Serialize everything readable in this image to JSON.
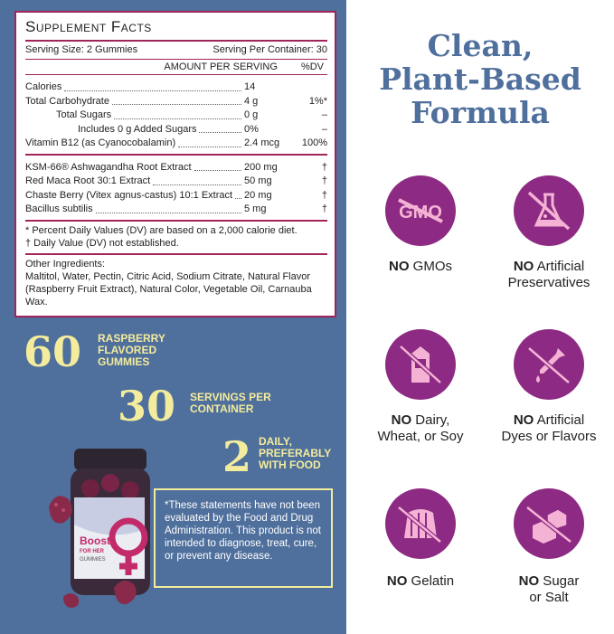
{
  "facts": {
    "title": "Supplement Facts",
    "serving_size": "Serving Size: 2 Gummies",
    "servings_per_container": "Serving Per Container: 30",
    "amount_header": "AMOUNT PER SERVING",
    "dv_header": "%DV",
    "nutrients": [
      {
        "name": "Calories",
        "amount": "14",
        "dv": ""
      },
      {
        "name": "Total Carbohydrate",
        "amount": "4 g",
        "dv": "1%*"
      },
      {
        "name": "Total Sugars",
        "amount": "0 g",
        "dv": "–"
      },
      {
        "name": "Includes 0 g Added Sugars",
        "amount": "0%",
        "dv": "–"
      },
      {
        "name": "Vitamin B12 (as Cyanocobalamin)",
        "amount": "2.4 mcg",
        "dv": "100%"
      }
    ],
    "extracts": [
      {
        "name": "KSM-66® Ashwagandha Root Extract",
        "amount": "200 mg",
        "dv": "†"
      },
      {
        "name": "Red Maca Root 30:1 Extract",
        "amount": "50 mg",
        "dv": "†"
      },
      {
        "name": "Chaste Berry (Vitex agnus-castus) 10:1 Extract",
        "amount": "20 mg",
        "dv": "†"
      },
      {
        "name": "Bacillus subtilis",
        "amount": "5 mg",
        "dv": "†"
      }
    ],
    "footnote1": "* Percent Daily Values (DV) are based on a 2,000 calorie diet.",
    "footnote2": "† Daily Value (DV) not established.",
    "other_title": "Other Ingredients:",
    "other_line1": "Maltitol, Water, Pectin, Citric Acid, Sodium Citrate, Natural Flavor",
    "other_line2": "(Raspberry Fruit Extract), Natural Color, Vegetable Oil, Carnauba Wax."
  },
  "stats": [
    {
      "number": "60",
      "l1": "RASPBERRY",
      "l2": "FLAVORED",
      "l3": "GUMMIES"
    },
    {
      "number": "30",
      "l1": "SERVINGS PER",
      "l2": "CONTAINER",
      "l3": ""
    },
    {
      "number": "2",
      "l1": "DAILY,",
      "l2": "PREFERABLY",
      "l3": "WITH FOOD"
    }
  ],
  "disclaimer": "*These statements have not been evaluated by the Food and Drug Administration. This product is not intended to diagnose, treat, cure, or prevent any disease.",
  "product": {
    "brand": "Boost",
    "sub": "FOR HER",
    "kind": "GUMMIES"
  },
  "right": {
    "title_l1": "Clean,",
    "title_l2": "Plant-Based",
    "title_l3": "Formula",
    "badges": [
      {
        "no": "NO",
        "rest1": " GMOs",
        "rest2": "",
        "icon": "no-gmo-icon",
        "gmo_text": "GMO"
      },
      {
        "no": "NO",
        "rest1": " Artificial",
        "rest2": "Preservatives",
        "icon": "flask-icon"
      },
      {
        "no": "NO",
        "rest1": " Dairy,",
        "rest2": "Wheat, or Soy",
        "icon": "milk-carton-icon"
      },
      {
        "no": "NO",
        "rest1": " Artificial",
        "rest2": "Dyes or Flavors",
        "icon": "dropper-icon"
      },
      {
        "no": "NO",
        "rest1": " Gelatin",
        "rest2": "",
        "icon": "gelatin-icon"
      },
      {
        "no": "NO",
        "rest1": " Sugar",
        "rest2": "or Salt",
        "icon": "sugar-cube-icon"
      }
    ]
  },
  "colors": {
    "panel": "#4f6f9c",
    "accent": "#a2245a",
    "badge": "#8d2a83",
    "yellow": "#f3ec9d"
  }
}
